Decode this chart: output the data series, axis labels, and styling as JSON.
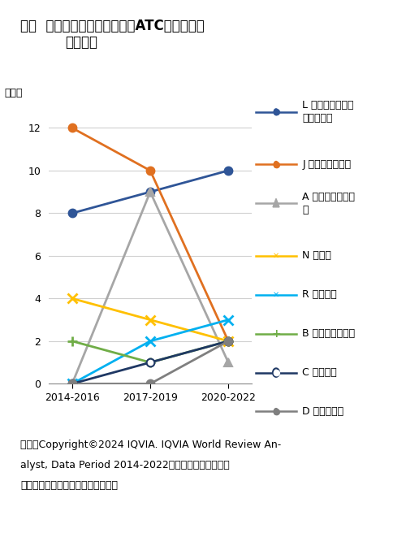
{
  "title_line1": "図７  新規ランクイン品目数のATC薬効分類の",
  "title_line2": "経時変化",
  "ylabel": "品目数",
  "xlabel_ticks": [
    "2014-2016",
    "2017-2019",
    "2020-2022"
  ],
  "ylim": [
    0,
    13
  ],
  "yticks": [
    0,
    2,
    4,
    6,
    8,
    10,
    12
  ],
  "series": [
    {
      "label_line1": "L 抗悪性腫瘍薬と",
      "label_line2": "免疫調節薬",
      "values": [
        8,
        9,
        10
      ],
      "color": "#2F5597",
      "marker": "o",
      "marker_fill": "#2F5597",
      "linestyle": "-",
      "linewidth": 2.0
    },
    {
      "label_line1": "J 全身用抗感染薬",
      "label_line2": "",
      "values": [
        12,
        10,
        2
      ],
      "color": "#E07020",
      "marker": "o",
      "marker_fill": "#E07020",
      "linestyle": "-",
      "linewidth": 2.0
    },
    {
      "label_line1": "A 消化管と代謝作",
      "label_line2": "用",
      "values": [
        0,
        9,
        1
      ],
      "color": "#A6A6A6",
      "marker": "^",
      "marker_fill": "#A6A6A6",
      "linestyle": "-",
      "linewidth": 2.0
    },
    {
      "label_line1": "N 神経系",
      "label_line2": "",
      "values": [
        4,
        3,
        2
      ],
      "color": "#FFC000",
      "marker": "x",
      "marker_fill": "#FFC000",
      "linestyle": "-",
      "linewidth": 2.0
    },
    {
      "label_line1": "R 呼吸器系",
      "label_line2": "",
      "values": [
        0,
        2,
        3
      ],
      "color": "#00B0F0",
      "marker": "x",
      "marker_fill": "#00B0F0",
      "linestyle": "-",
      "linewidth": 2.0
    },
    {
      "label_line1": "B 血液と造血器官",
      "label_line2": "",
      "values": [
        2,
        1,
        2
      ],
      "color": "#70AD47",
      "marker": "+",
      "marker_fill": "#70AD47",
      "linestyle": "-",
      "linewidth": 2.0
    },
    {
      "label_line1": "C 循環器系",
      "label_line2": "",
      "values": [
        0,
        1,
        2
      ],
      "color": "#1F3864",
      "marker": "o",
      "marker_fill": "white",
      "linestyle": "-",
      "linewidth": 2.0
    },
    {
      "label_line1": "D 皮膚科用薬",
      "label_line2": "",
      "values": [
        0,
        0,
        2
      ],
      "color": "#7F7F7F",
      "marker": "o",
      "marker_fill": "#7F7F7F",
      "linestyle": "-",
      "linewidth": 2.0
    }
  ],
  "source_text1": "出所：Copyright©2024 IQVIA. IQVIA World Review An-",
  "source_text2": "alyst, Data Period 2014-2022をもとに医薬産業政策",
  "source_text3": "研究所にて作成（無断転載禁止）。",
  "background_color": "#ffffff",
  "title_fontsize": 12,
  "axis_fontsize": 9,
  "legend_fontsize": 9,
  "source_fontsize": 9
}
